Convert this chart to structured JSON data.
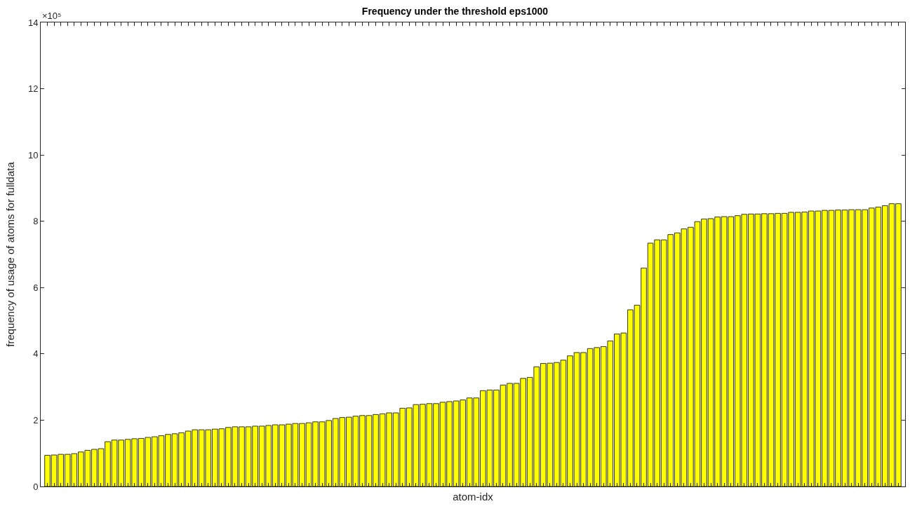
{
  "chart_data": {
    "type": "bar",
    "title": "Frequency under the threshold eps1000",
    "xlabel": "atom-idx",
    "ylabel": "frequency of usage of atoms for fulldata",
    "annotations": [
      "×10⁵"
    ],
    "categories": [
      null,
      null,
      null,
      null,
      null,
      null,
      null,
      null,
      null,
      null,
      null,
      null,
      null,
      null,
      null,
      null,
      null,
      null,
      null,
      null,
      null,
      null,
      null,
      null,
      null,
      null,
      null,
      null,
      null,
      null,
      null,
      null,
      null,
      null,
      null,
      null,
      null,
      null,
      null,
      null,
      null,
      null,
      null,
      null,
      null,
      null,
      null,
      null,
      null,
      null,
      null,
      null,
      null,
      null,
      null,
      null,
      null,
      null,
      null,
      null,
      null,
      null,
      null,
      null,
      null,
      null,
      null,
      null,
      null,
      null,
      null,
      null,
      null,
      null,
      null,
      null,
      null,
      null,
      null,
      null,
      null,
      null,
      null,
      null,
      null,
      null,
      null,
      null,
      null,
      null,
      null,
      null,
      null,
      null,
      null,
      null,
      null,
      null,
      null,
      null,
      null,
      null,
      null,
      null,
      null,
      null,
      null,
      null,
      null,
      null,
      null,
      null,
      null,
      null,
      null,
      null,
      null,
      null,
      null,
      null,
      null,
      null,
      null,
      null,
      null,
      null,
      null,
      null
    ],
    "values": [
      0.94,
      0.95,
      0.97,
      0.97,
      0.99,
      1.04,
      1.09,
      1.12,
      1.14,
      1.35,
      1.4,
      1.4,
      1.42,
      1.44,
      1.45,
      1.48,
      1.5,
      1.53,
      1.57,
      1.59,
      1.62,
      1.67,
      1.71,
      1.71,
      1.71,
      1.73,
      1.74,
      1.78,
      1.8,
      1.8,
      1.8,
      1.82,
      1.82,
      1.84,
      1.86,
      1.86,
      1.88,
      1.9,
      1.9,
      1.92,
      1.95,
      1.95,
      1.99,
      2.05,
      2.08,
      2.09,
      2.12,
      2.14,
      2.14,
      2.17,
      2.19,
      2.22,
      2.22,
      2.36,
      2.37,
      2.47,
      2.48,
      2.5,
      2.5,
      2.54,
      2.56,
      2.58,
      2.61,
      2.67,
      2.67,
      2.89,
      2.91,
      2.91,
      3.06,
      3.11,
      3.11,
      3.26,
      3.29,
      3.61,
      3.71,
      3.72,
      3.74,
      3.81,
      3.94,
      4.04,
      4.04,
      4.16,
      4.19,
      4.22,
      4.39,
      4.6,
      4.63,
      5.33,
      5.47,
      6.59,
      7.34,
      7.44,
      7.44,
      7.6,
      7.65,
      7.77,
      7.82,
      7.99,
      8.07,
      8.08,
      8.13,
      8.14,
      8.14,
      8.17,
      8.21,
      8.22,
      8.22,
      8.23,
      8.23,
      8.24,
      8.24,
      8.27,
      8.27,
      8.28,
      8.31,
      8.31,
      8.33,
      8.33,
      8.34,
      8.34,
      8.35,
      8.35,
      8.35,
      8.4,
      8.43,
      8.47,
      8.53,
      8.53
    ],
    "color": "#ffff00",
    "ylim": [
      0,
      14
    ],
    "yticks": [
      0,
      2,
      4,
      6,
      8,
      10,
      12,
      14
    ],
    "legend": false
  }
}
